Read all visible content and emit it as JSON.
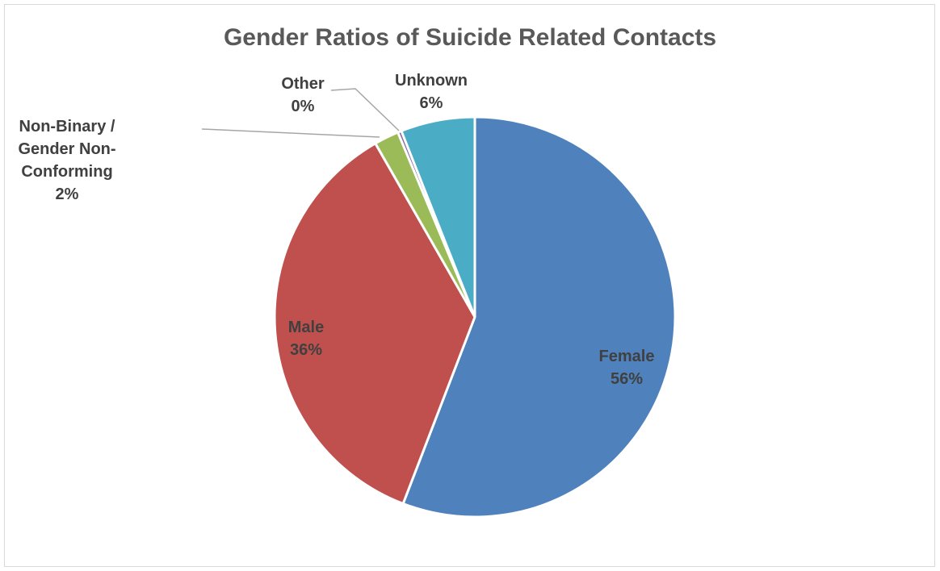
{
  "chart_data": {
    "type": "pie",
    "title": "Gender Ratios of Suicide Related Contacts",
    "start_angle_deg": 0,
    "direction": "clockwise",
    "slices": [
      {
        "label": "Female",
        "value": 56,
        "display": "56%",
        "color": "#4F81BD",
        "label_lines": [
          "Female"
        ]
      },
      {
        "label": "Male",
        "value": 36,
        "display": "36%",
        "color": "#C0504D",
        "label_lines": [
          "Male"
        ]
      },
      {
        "label": "Non-Binary / Gender Non-Conforming",
        "value": 2,
        "display": "2%",
        "color": "#9BBB59",
        "label_lines": [
          "Non-Binary /",
          "Gender Non-",
          "Conforming"
        ]
      },
      {
        "label": "Other",
        "value": 0.3,
        "display": "0%",
        "color": "#8064A2",
        "label_lines": [
          "Other"
        ]
      },
      {
        "label": "Unknown",
        "value": 6,
        "display": "6%",
        "color": "#4BACC6",
        "label_lines": [
          "Unknown"
        ]
      }
    ],
    "legend": "none"
  }
}
